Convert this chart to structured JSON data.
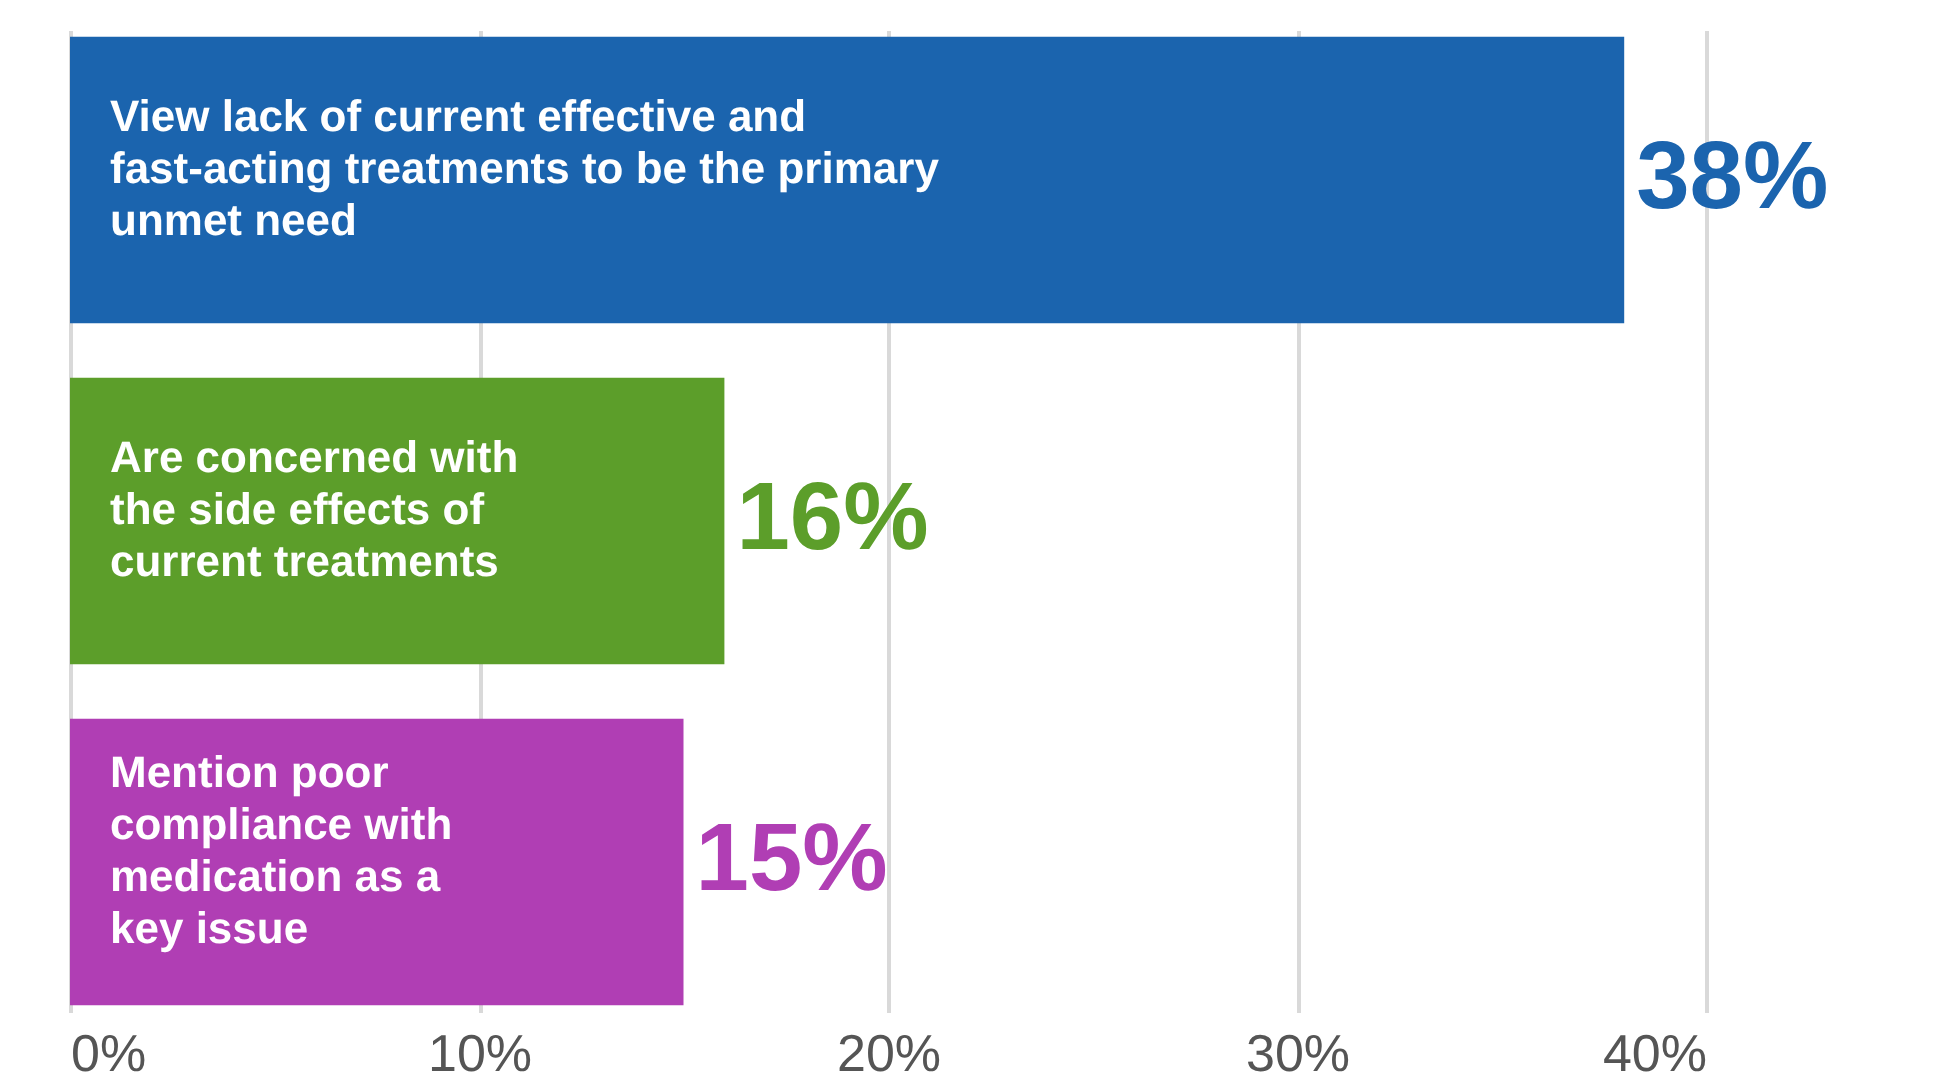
{
  "chart_data": {
    "type": "bar",
    "orientation": "horizontal",
    "categories": [
      "View lack of current effective and fast-acting treatments to be the primary unmet need",
      "Are concerned with the side effects of current treatments",
      "Mention poor compliance with medication as a key issue"
    ],
    "values": [
      38,
      16,
      15
    ],
    "colors": [
      "#1b64ae",
      "#5c9e2a",
      "#b03eb4"
    ],
    "value_labels": [
      "38%",
      "16%",
      "15%"
    ],
    "xlim": [
      0,
      40
    ],
    "xticks": [
      {
        "value": 0,
        "label": "0%"
      },
      {
        "value": 10,
        "label": "10%"
      },
      {
        "value": 20,
        "label": "20%"
      },
      {
        "value": 30,
        "label": "30%"
      },
      {
        "value": 40,
        "label": "40%"
      }
    ],
    "grid": "x"
  }
}
